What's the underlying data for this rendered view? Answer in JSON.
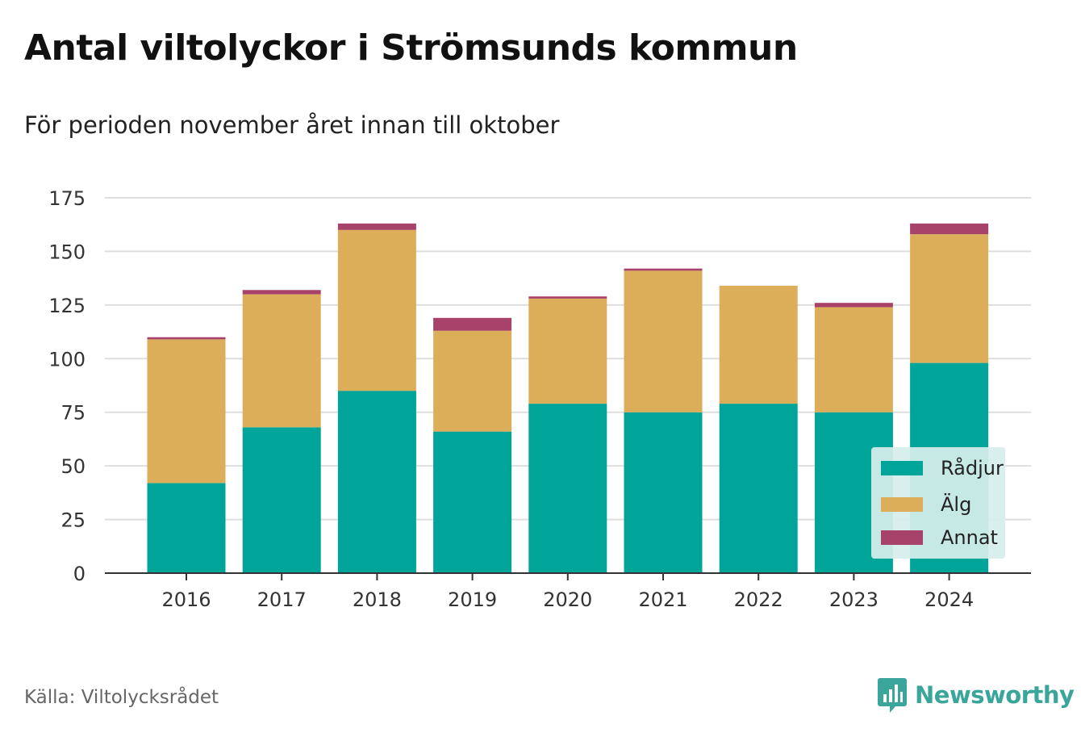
{
  "title": "Antal viltolyckor i Strömsunds kommun",
  "subtitle": "För perioden november året innan till oktober",
  "source": "Källa: Viltolycksrådet",
  "brand": {
    "name": "Newsworthy",
    "icon": "newsworthy-logo-icon",
    "color": "#3aa59a"
  },
  "chart_data": {
    "type": "bar",
    "stacked": true,
    "categories": [
      "2016",
      "2017",
      "2018",
      "2019",
      "2020",
      "2021",
      "2022",
      "2023",
      "2024"
    ],
    "series": [
      {
        "name": "Rådjur",
        "color": "#00a499",
        "values": [
          42,
          68,
          85,
          66,
          79,
          75,
          79,
          75,
          98
        ]
      },
      {
        "name": "Älg",
        "color": "#dcae5a",
        "values": [
          67,
          62,
          75,
          47,
          49,
          66,
          55,
          49,
          60
        ]
      },
      {
        "name": "Annat",
        "color": "#a7436a",
        "values": [
          1,
          2,
          3,
          6,
          1,
          1,
          0,
          2,
          5
        ]
      }
    ],
    "ylim": [
      0,
      175
    ],
    "yticks": [
      "0",
      "25",
      "50",
      "75",
      "100",
      "125",
      "150",
      "175"
    ],
    "xlabel": "",
    "ylabel": "",
    "grid": true,
    "legend_position": "bottom-right"
  }
}
